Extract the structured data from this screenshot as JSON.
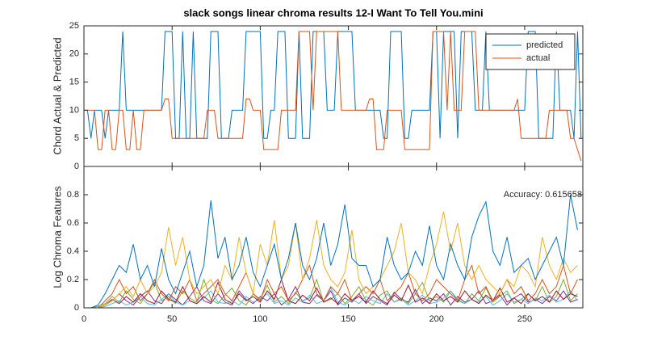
{
  "chart_data": [
    {
      "type": "line",
      "title": "slack songs linear chroma results 12-I Want To Tell You.mini",
      "ylabel": "Chord Actual & Predicted",
      "x": [
        0,
        2,
        4,
        6,
        8,
        10,
        12,
        14,
        16,
        18,
        20,
        22,
        24,
        26,
        28,
        30,
        32,
        34,
        36,
        38,
        40,
        42,
        44,
        46,
        48,
        50,
        52,
        54,
        56,
        58,
        60,
        62,
        64,
        66,
        68,
        70,
        72,
        74,
        76,
        78,
        80,
        82,
        84,
        86,
        88,
        90,
        92,
        94,
        96,
        98,
        100,
        102,
        104,
        106,
        108,
        110,
        112,
        114,
        116,
        118,
        120,
        122,
        124,
        126,
        128,
        130,
        132,
        134,
        136,
        138,
        140,
        142,
        144,
        146,
        148,
        150,
        152,
        154,
        156,
        158,
        160,
        162,
        164,
        166,
        168,
        170,
        172,
        174,
        176,
        178,
        180,
        182,
        184,
        186,
        188,
        190,
        192,
        194,
        196,
        198,
        200,
        202,
        204,
        206,
        208,
        210,
        212,
        214,
        216,
        218,
        220,
        222,
        224,
        226,
        228,
        230,
        232,
        234,
        236,
        238,
        240,
        242,
        244,
        246,
        248,
        250,
        252,
        254,
        256,
        258,
        260,
        262,
        264,
        266,
        268,
        270,
        272,
        274,
        276,
        278,
        280,
        282
      ],
      "series": [
        {
          "name": "predicted",
          "color": "#0072BD",
          "values": [
            10,
            10,
            5,
            10,
            10,
            10,
            5,
            10,
            10,
            10,
            10,
            24,
            10,
            10,
            10,
            10,
            10,
            10,
            10,
            10,
            10,
            10,
            10,
            24,
            24,
            24,
            5,
            5,
            24,
            5,
            5,
            24,
            5,
            5,
            5,
            5,
            24,
            24,
            24,
            5,
            5,
            5,
            10,
            10,
            10,
            10,
            24,
            24,
            24,
            24,
            24,
            5,
            5,
            10,
            10,
            24,
            24,
            24,
            5,
            5,
            5,
            24,
            5,
            5,
            5,
            24,
            24,
            24,
            24,
            10,
            10,
            10,
            24,
            24,
            24,
            24,
            24,
            10,
            10,
            10,
            10,
            10,
            10,
            10,
            10,
            5,
            5,
            24,
            24,
            24,
            24,
            5,
            5,
            10,
            10,
            10,
            10,
            10,
            10,
            24,
            24,
            5,
            24,
            24,
            24,
            24,
            5,
            24,
            24,
            24,
            24,
            10,
            10,
            10,
            24,
            10,
            10,
            10,
            10,
            10,
            10,
            10,
            10,
            10,
            10,
            10,
            24,
            24,
            24,
            5,
            5,
            5,
            5,
            5,
            24,
            10,
            10,
            10,
            10,
            5,
            24,
            5
          ]
        },
        {
          "name": "actual",
          "color": "#D95319",
          "values": [
            10,
            10,
            10,
            10,
            3,
            3,
            10,
            10,
            3,
            3,
            10,
            10,
            3,
            3,
            10,
            3,
            3,
            10,
            10,
            10,
            10,
            10,
            10,
            12,
            12,
            5,
            5,
            5,
            5,
            5,
            5,
            5,
            5,
            5,
            5,
            10,
            10,
            10,
            5,
            5,
            5,
            5,
            5,
            5,
            5,
            5,
            12,
            12,
            10,
            10,
            10,
            3,
            3,
            3,
            3,
            3,
            10,
            10,
            10,
            10,
            10,
            24,
            24,
            24,
            24,
            10,
            24,
            24,
            24,
            24,
            24,
            24,
            24,
            10,
            10,
            10,
            10,
            10,
            10,
            10,
            10,
            12,
            12,
            3,
            3,
            3,
            10,
            10,
            10,
            10,
            10,
            3,
            3,
            3,
            3,
            3,
            3,
            3,
            3,
            24,
            24,
            24,
            24,
            10,
            24,
            10,
            10,
            10,
            24,
            24,
            24,
            24,
            10,
            10,
            10,
            10,
            10,
            10,
            10,
            10,
            10,
            10,
            10,
            12,
            5,
            5,
            5,
            5,
            5,
            5,
            5,
            5,
            10,
            10,
            10,
            10,
            10,
            10,
            5,
            5,
            3,
            1
          ]
        }
      ],
      "xlim": [
        0,
        283
      ],
      "ylim": [
        0,
        25
      ],
      "yticks": [
        0,
        5,
        10,
        15,
        20,
        25
      ],
      "legend": "northeast"
    },
    {
      "type": "line",
      "ylabel": "Log Chroma Features",
      "annotation": "Accuracy: 0.615658",
      "x": [
        0,
        4,
        8,
        12,
        16,
        20,
        24,
        28,
        32,
        36,
        40,
        44,
        48,
        52,
        56,
        60,
        64,
        68,
        72,
        76,
        80,
        84,
        88,
        92,
        96,
        100,
        104,
        108,
        112,
        116,
        120,
        124,
        128,
        132,
        136,
        140,
        144,
        148,
        152,
        156,
        160,
        164,
        168,
        172,
        176,
        180,
        184,
        188,
        192,
        196,
        200,
        204,
        208,
        212,
        216,
        220,
        224,
        228,
        232,
        236,
        240,
        244,
        248,
        252,
        256,
        260,
        264,
        268,
        272,
        276,
        280
      ],
      "series": [
        {
          "color": "#7E2F8E",
          "values": [
            0,
            0,
            0,
            0.02,
            0.05,
            0.1,
            0.05,
            0.02,
            0.08,
            0.12,
            0.05,
            0.03,
            0.1,
            0.06,
            0.02,
            0.08,
            0.15,
            0.05,
            0.03,
            0.1,
            0.04,
            0.02,
            0.12,
            0.06,
            0.03,
            0.08,
            0.05,
            0.1,
            0.02,
            0.06,
            0.15,
            0.04,
            0.03,
            0.09,
            0.05,
            0.12,
            0.02,
            0.07,
            0.04,
            0.1,
            0.03,
            0.08,
            0.05,
            0.02,
            0.11,
            0.06,
            0.04,
            0.13,
            0.03,
            0.07,
            0.05,
            0.1,
            0.02,
            0.08,
            0.04,
            0.06,
            0.12,
            0.03,
            0.05,
            0.09,
            0.02,
            0.07,
            0.1,
            0.04,
            0.06,
            0.03,
            0.08,
            0.05,
            0.12,
            0.04,
            0.06
          ]
        },
        {
          "color": "#77AC30",
          "values": [
            0,
            0,
            0.01,
            0.03,
            0.08,
            0.04,
            0.12,
            0.06,
            0.03,
            0.1,
            0.18,
            0.05,
            0.08,
            0.03,
            0.12,
            0.07,
            0.04,
            0.2,
            0.06,
            0.03,
            0.09,
            0.14,
            0.05,
            0.02,
            0.1,
            0.06,
            0.16,
            0.04,
            0.08,
            0.03,
            0.11,
            0.05,
            0.07,
            0.2,
            0.04,
            0.06,
            0.1,
            0.03,
            0.08,
            0.15,
            0.05,
            0.02,
            0.09,
            0.12,
            0.04,
            0.07,
            0.03,
            0.1,
            0.18,
            0.05,
            0.08,
            0.04,
            0.12,
            0.06,
            0.03,
            0.1,
            0.05,
            0.14,
            0.04,
            0.08,
            0.12,
            0.03,
            0.06,
            0.1,
            0.05,
            0.15,
            0.04,
            0.08,
            0.2,
            0.05,
            0.1
          ]
        },
        {
          "color": "#4DBEEE",
          "values": [
            0,
            0,
            0,
            0.01,
            0.03,
            0.05,
            0.02,
            0.04,
            0.08,
            0.03,
            0.02,
            0.06,
            0.1,
            0.04,
            0.02,
            0.05,
            0.03,
            0.07,
            0.12,
            0.04,
            0.03,
            0.05,
            0.02,
            0.08,
            0.04,
            0.06,
            0.1,
            0.03,
            0.05,
            0.02,
            0.07,
            0.04,
            0.09,
            0.03,
            0.05,
            0.14,
            0.04,
            0.02,
            0.06,
            0.03,
            0.08,
            0.05,
            0.03,
            0.1,
            0.04,
            0.06,
            0.02,
            0.05,
            0.09,
            0.03,
            0.04,
            0.07,
            0.12,
            0.05,
            0.03,
            0.06,
            0.04,
            0.08,
            0.02,
            0.05,
            0.1,
            0.04,
            0.06,
            0.03,
            0.07,
            0.05,
            0.09,
            0.04,
            0.06,
            0.12,
            0.05
          ]
        },
        {
          "color": "#A2142F",
          "values": [
            0,
            0,
            0,
            0.02,
            0.06,
            0.03,
            0.08,
            0.04,
            0.1,
            0.05,
            0.03,
            0.12,
            0.06,
            0.04,
            0.15,
            0.05,
            0.03,
            0.08,
            0.04,
            0.18,
            0.06,
            0.03,
            0.1,
            0.05,
            0.08,
            0.04,
            0.12,
            0.06,
            0.2,
            0.05,
            0.03,
            0.09,
            0.05,
            0.14,
            0.04,
            0.07,
            0.03,
            0.1,
            0.05,
            0.08,
            0.04,
            0.12,
            0.06,
            0.03,
            0.09,
            0.05,
            0.16,
            0.04,
            0.07,
            0.03,
            0.1,
            0.05,
            0.08,
            0.04,
            0.12,
            0.06,
            0.03,
            0.09,
            0.05,
            0.14,
            0.04,
            0.07,
            0.03,
            0.1,
            0.05,
            0.08,
            0.04,
            0.12,
            0.06,
            0.1,
            0.08
          ]
        },
        {
          "color": "#D95319",
          "values": [
            0,
            0,
            0,
            0.05,
            0.1,
            0.2,
            0.1,
            0.15,
            0.05,
            0.1,
            0.2,
            0.1,
            0.05,
            0.15,
            0.1,
            0.2,
            0.05,
            0.1,
            0.15,
            0.2,
            0.1,
            0.05,
            0.15,
            0.25,
            0.1,
            0.05,
            0.2,
            0.1,
            0.15,
            0.05,
            0.1,
            0.2,
            0.3,
            0.1,
            0.05,
            0.15,
            0.1,
            0.2,
            0.05,
            0.1,
            0.15,
            0.1,
            0.2,
            0.05,
            0.1,
            0.15,
            0.25,
            0.1,
            0.05,
            0.1,
            0.2,
            0.15,
            0.1,
            0.05,
            0.2,
            0.3,
            0.1,
            0.15,
            0.05,
            0.1,
            0.2,
            0.1,
            0.15,
            0.05,
            0.1,
            0.2,
            0.1,
            0.15,
            0.3,
            0.1,
            0.2
          ]
        },
        {
          "color": "#EDB120",
          "values": [
            0,
            0,
            0,
            0.02,
            0.05,
            0.1,
            0.15,
            0.08,
            0.2,
            0.1,
            0.15,
            0.25,
            0.57,
            0.3,
            0.5,
            0.2,
            0.1,
            0.15,
            0.2,
            0.1,
            0.3,
            0.2,
            0.5,
            0.25,
            0.1,
            0.45,
            0.3,
            0.62,
            0.2,
            0.3,
            0.6,
            0.2,
            0.35,
            0.62,
            0.3,
            0.2,
            0.15,
            0.25,
            0.55,
            0.2,
            0.1,
            0.15,
            0.2,
            0.3,
            0.4,
            0.6,
            0.25,
            0.2,
            0.1,
            0.3,
            0.45,
            0.68,
            0.4,
            0.6,
            0.3,
            0.2,
            0.3,
            0.2,
            0.15,
            0.1,
            0.2,
            0.15,
            0.3,
            0.25,
            0.15,
            0.5,
            0.3,
            0.2,
            0.35,
            0.25,
            0.3
          ]
        },
        {
          "color": "#0072BD",
          "values": [
            0,
            0,
            0.02,
            0.1,
            0.2,
            0.3,
            0.25,
            0.45,
            0.2,
            0.3,
            0.15,
            0.42,
            0.2,
            0.1,
            0.25,
            0.4,
            0.15,
            0.3,
            0.76,
            0.35,
            0.5,
            0.2,
            0.3,
            0.5,
            0.25,
            0.15,
            0.3,
            0.45,
            0.2,
            0.35,
            0.6,
            0.3,
            0.2,
            0.35,
            0.6,
            0.3,
            0.45,
            0.73,
            0.35,
            0.3,
            0.3,
            0.15,
            0.2,
            0.5,
            0.3,
            0.2,
            0.25,
            0.4,
            0.3,
            0.58,
            0.3,
            0.2,
            0.45,
            0.3,
            0.2,
            0.5,
            0.65,
            0.75,
            0.4,
            0.3,
            0.5,
            0.25,
            0.3,
            0.35,
            0.2,
            0.3,
            0.4,
            0.5,
            0.3,
            0.8,
            0.55
          ]
        }
      ],
      "xlim": [
        0,
        283
      ],
      "xticks": [
        0,
        50,
        100,
        150,
        200,
        250
      ],
      "ylim": [
        0,
        1
      ],
      "yticks": [
        0,
        0.2,
        0.4,
        0.6,
        0.8
      ]
    }
  ]
}
